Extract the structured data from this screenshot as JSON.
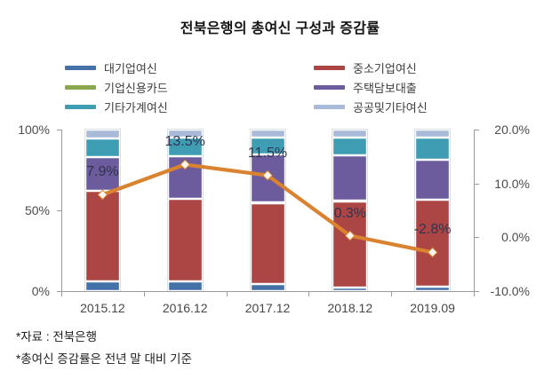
{
  "title": "전북은행의 총여신 구성과 증감률",
  "footnotes": [
    "*자료 : 전북은행",
    "*총여신 증감률은 전년 말 대비 기준"
  ],
  "chart_data": {
    "type": "bar",
    "subtype": "stacked-percent-columns-with-line",
    "categories": [
      "2015.12",
      "2016.12",
      "2017.12",
      "2018.12",
      "2019.09"
    ],
    "series": [
      {
        "key": "large-corp-loans",
        "name": "대기업여신",
        "color": "#4471A7",
        "values": [
          6.0,
          6.0,
          4.5,
          2.0,
          3.0
        ]
      },
      {
        "key": "sme-loans",
        "name": "중소기업여신",
        "color": "#AC4645",
        "values": [
          56.0,
          51.0,
          50.0,
          53.5,
          53.5
        ]
      },
      {
        "key": "corp-credit-card",
        "name": "기업신용카드",
        "color": "#8CA84F",
        "values": [
          0.3,
          0.3,
          0.3,
          0.3,
          0.3
        ]
      },
      {
        "key": "mortgage-loans",
        "name": "주택담보대출",
        "color": "#6C5B9D",
        "values": [
          20.5,
          26.5,
          30.0,
          28.5,
          24.5
        ]
      },
      {
        "key": "other-household-loans",
        "name": "기타가계여신",
        "color": "#3E9DB2",
        "values": [
          12.0,
          11.5,
          10.5,
          11.0,
          14.0
        ]
      },
      {
        "key": "public-other-loans",
        "name": "공공및기타여신",
        "color": "#A9BAD8",
        "values": [
          5.2,
          4.7,
          4.7,
          4.7,
          4.7
        ]
      }
    ],
    "line_series": {
      "key": "total-loan-growth-rate",
      "name": "총여신 증감률",
      "color": "#D9822F",
      "marker_fill": "#FDF6EE",
      "values": [
        7.9,
        13.5,
        11.5,
        0.3,
        -2.8
      ],
      "labels": [
        "7.9%",
        "13.5%",
        "11.5%",
        "0.3%",
        "-2.8%"
      ]
    },
    "left_axis": {
      "min": 0,
      "max": 100,
      "ticks": [
        {
          "label": "100%",
          "value": 100
        },
        {
          "label": "50%",
          "value": 50
        },
        {
          "label": "0%",
          "value": 0
        }
      ]
    },
    "right_axis": {
      "min": -10,
      "max": 20,
      "ticks": [
        {
          "label": "20.0%",
          "value": 20
        },
        {
          "label": "10.0%",
          "value": 10
        },
        {
          "label": "0.0%",
          "value": 0
        },
        {
          "label": "-10.0%",
          "value": -10
        }
      ]
    },
    "legend_columns": [
      [
        "large-corp-loans",
        "corp-credit-card",
        "other-household-loans"
      ],
      [
        "sme-loans",
        "mortgage-loans",
        "public-other-loans"
      ]
    ]
  }
}
